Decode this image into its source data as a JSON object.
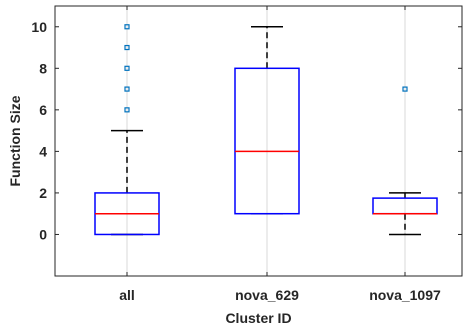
{
  "chart_data": {
    "type": "box",
    "xlabel": "Cluster ID",
    "ylabel": "Function Size",
    "ylim": [
      -2,
      11
    ],
    "yticks": [
      0,
      2,
      4,
      6,
      8,
      10
    ],
    "grid": "vertical",
    "categories": [
      "all",
      "nova_629",
      "nova_1097"
    ],
    "boxes": [
      {
        "category": "all",
        "whisker_low": 0,
        "q1": 0,
        "median": 1,
        "q3": 2,
        "whisker_high": 5,
        "outliers": [
          6,
          7,
          8,
          9,
          10
        ]
      },
      {
        "category": "nova_629",
        "whisker_low": 1,
        "q1": 1,
        "median": 4,
        "q3": 8,
        "whisker_high": 10,
        "outliers": []
      },
      {
        "category": "nova_1097",
        "whisker_low": 0,
        "q1": 1,
        "median": 1,
        "q3": 1.75,
        "whisker_high": 2,
        "outliers": [
          7
        ]
      }
    ],
    "colors": {
      "box": "#0000ff",
      "median": "#ff0000",
      "whisker": "#000000",
      "outlier": "#0072bd",
      "grid": "#d9d9d9"
    }
  }
}
